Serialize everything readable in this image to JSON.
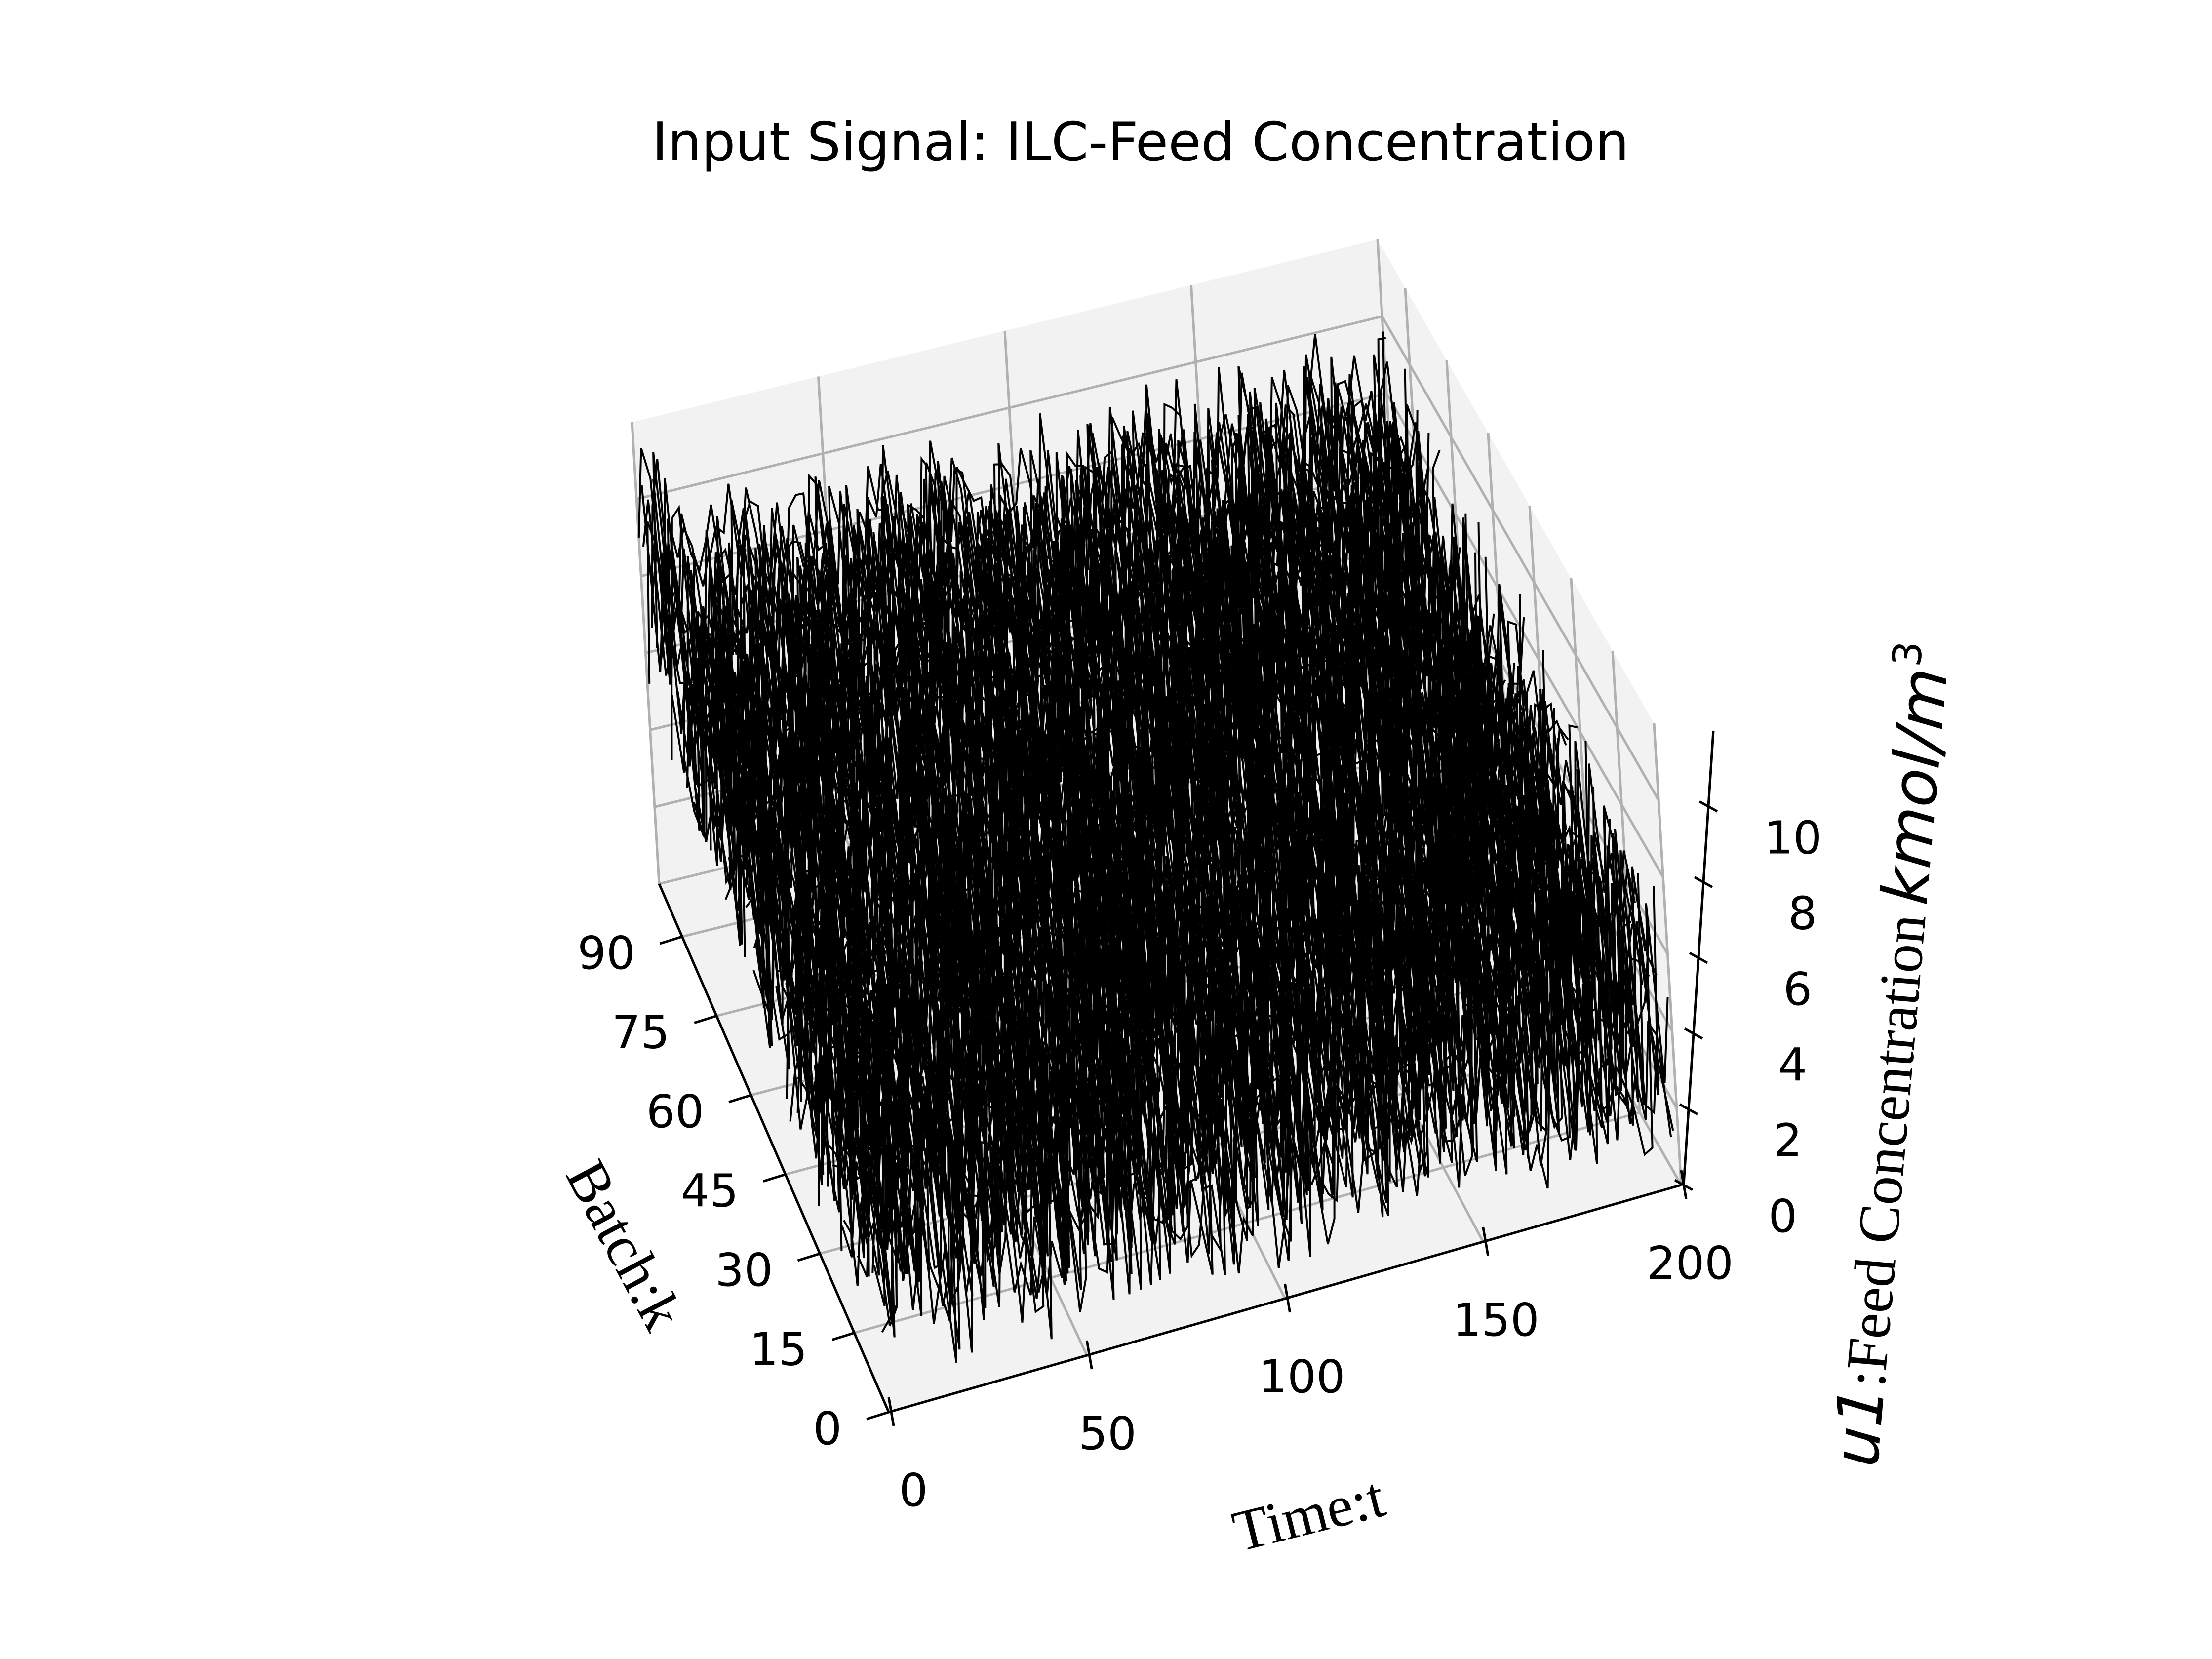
{
  "chart_data": {
    "type": "surface-3d-line",
    "title": "Input Signal: ILC-Feed Concentration",
    "xlabel": "Time:t",
    "ylabel": "Batch:k",
    "zlabel_main": "u1",
    "zlabel_mid": ":Feed Concentration",
    "zlabel_unit": "kmol/m",
    "zlabel_sup": "3",
    "x_ticks": [
      "0",
      "50",
      "100",
      "150",
      "200"
    ],
    "y_ticks": [
      "0",
      "15",
      "30",
      "45",
      "60",
      "75",
      "90"
    ],
    "z_ticks": [
      "0",
      "2",
      "4",
      "6",
      "8",
      "10"
    ],
    "xlim": [
      0,
      200
    ],
    "ylim": [
      0,
      100
    ],
    "zlim": [
      0,
      12
    ],
    "grid": true,
    "line_color": "#000000",
    "pane_color": "#f2f2f2",
    "grid_color": "#b0b0b0",
    "series_note": "one black line per batch k = 1..100, each a noisy feed-concentration signal over t = 0..200",
    "series_levels": [
      {
        "batch": 1,
        "baseline": 4.0,
        "amplitude": 3.5
      },
      {
        "batch": 50,
        "baseline": 5.5,
        "amplitude": 3.5
      },
      {
        "batch": 100,
        "baseline": 7.0,
        "amplitude": 3.0
      }
    ]
  }
}
